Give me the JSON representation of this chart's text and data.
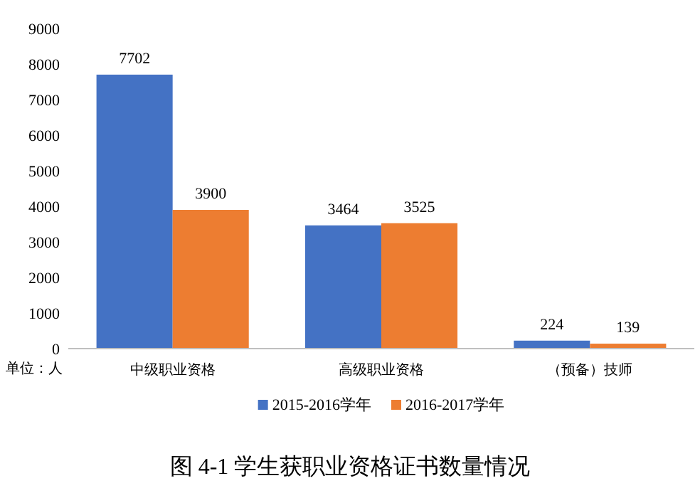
{
  "chart_data": {
    "type": "bar",
    "title": "图 4-1 学生获职业资格证书数量情况",
    "categories": [
      "中级职业资格",
      "高级职业资格",
      "（预备）技师"
    ],
    "series": [
      {
        "name": "2015-2016学年",
        "color": "#4472c4",
        "values": [
          7702,
          3464,
          224
        ]
      },
      {
        "name": "2016-2017学年",
        "color": "#ed7d31",
        "values": [
          3900,
          3525,
          139
        ]
      }
    ],
    "ylim": [
      0,
      9000
    ],
    "yticks": [
      0,
      1000,
      2000,
      3000,
      4000,
      5000,
      6000,
      7000,
      8000,
      9000
    ],
    "data_labels": true,
    "legend": "bottom",
    "grid": false,
    "annotations": [
      "单位：人"
    ]
  }
}
